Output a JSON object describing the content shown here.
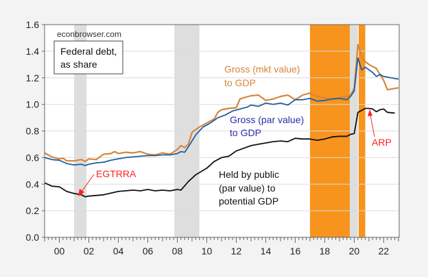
{
  "chart_data": {
    "type": "line",
    "title": "",
    "watermark": "econbrowser.com",
    "legend_box": [
      "Federal debt,",
      "as share"
    ],
    "xlabel": "",
    "ylabel": "",
    "xlim": [
      1999.0,
      2023.05
    ],
    "ylim": [
      0.0,
      1.6
    ],
    "grid": true,
    "y_ticks": [
      "0.0",
      "0.2",
      "0.4",
      "0.6",
      "0.8",
      "1.0",
      "1.2",
      "1.4",
      "1.6"
    ],
    "x_tick_labels": [
      {
        "year": 2000,
        "label": "00"
      },
      {
        "year": 2002,
        "label": "02"
      },
      {
        "year": 2004,
        "label": "04"
      },
      {
        "year": 2006,
        "label": "06"
      },
      {
        "year": 2008,
        "label": "08"
      },
      {
        "year": 2010,
        "label": "10"
      },
      {
        "year": 2012,
        "label": "12"
      },
      {
        "year": 2014,
        "label": "14"
      },
      {
        "year": 2016,
        "label": "16"
      },
      {
        "year": 2018,
        "label": "18"
      },
      {
        "year": 2020,
        "label": "20"
      },
      {
        "year": 2022,
        "label": "22"
      }
    ],
    "shading": [
      {
        "kind": "recession",
        "from": 2001.0,
        "to": 2001.85,
        "color": "#dedede"
      },
      {
        "kind": "recession",
        "from": 2007.8,
        "to": 2009.5,
        "color": "#dedede"
      },
      {
        "kind": "highlight",
        "from": 2017.0,
        "to": 2019.7,
        "color": "#f7941d"
      },
      {
        "kind": "recession",
        "from": 2019.7,
        "to": 2020.25,
        "color": "#dedede"
      },
      {
        "kind": "highlight",
        "from": 2020.3,
        "to": 2020.75,
        "color": "#f7941d"
      }
    ],
    "series": [
      {
        "name": "Gross (mkt value) to GDP",
        "label_lines": [
          "Gross (mkt value)",
          "to GDP"
        ],
        "color": "#d8853a",
        "points": [
          [
            1999.0,
            0.635
          ],
          [
            1999.5,
            0.605
          ],
          [
            2000.0,
            0.59
          ],
          [
            2000.25,
            0.595
          ],
          [
            2000.5,
            0.575
          ],
          [
            2001.0,
            0.575
          ],
          [
            2001.5,
            0.585
          ],
          [
            2001.75,
            0.57
          ],
          [
            2002.0,
            0.59
          ],
          [
            2002.5,
            0.585
          ],
          [
            2003.0,
            0.625
          ],
          [
            2003.5,
            0.63
          ],
          [
            2003.75,
            0.645
          ],
          [
            2004.0,
            0.63
          ],
          [
            2004.5,
            0.64
          ],
          [
            2005.0,
            0.635
          ],
          [
            2005.5,
            0.645
          ],
          [
            2006.0,
            0.625
          ],
          [
            2006.5,
            0.62
          ],
          [
            2007.0,
            0.635
          ],
          [
            2007.5,
            0.625
          ],
          [
            2008.0,
            0.66
          ],
          [
            2008.25,
            0.69
          ],
          [
            2008.5,
            0.675
          ],
          [
            2008.75,
            0.7
          ],
          [
            2009.0,
            0.79
          ],
          [
            2009.5,
            0.83
          ],
          [
            2010.0,
            0.86
          ],
          [
            2010.5,
            0.89
          ],
          [
            2010.75,
            0.94
          ],
          [
            2011.0,
            0.96
          ],
          [
            2011.5,
            0.97
          ],
          [
            2012.0,
            0.975
          ],
          [
            2012.25,
            1.04
          ],
          [
            2012.5,
            1.05
          ],
          [
            2013.0,
            1.065
          ],
          [
            2013.5,
            1.07
          ],
          [
            2014.0,
            1.03
          ],
          [
            2014.5,
            1.04
          ],
          [
            2015.0,
            1.06
          ],
          [
            2015.5,
            1.07
          ],
          [
            2016.0,
            1.035
          ],
          [
            2016.5,
            1.07
          ],
          [
            2017.0,
            1.085
          ],
          [
            2017.5,
            1.06
          ],
          [
            2018.0,
            1.05
          ],
          [
            2018.5,
            1.04
          ],
          [
            2019.0,
            1.05
          ],
          [
            2019.5,
            1.06
          ],
          [
            2019.75,
            1.07
          ],
          [
            2020.0,
            1.12
          ],
          [
            2020.25,
            1.45
          ],
          [
            2020.5,
            1.36
          ],
          [
            2020.75,
            1.32
          ],
          [
            2021.0,
            1.3
          ],
          [
            2021.5,
            1.27
          ],
          [
            2022.0,
            1.18
          ],
          [
            2022.25,
            1.11
          ],
          [
            2022.75,
            1.12
          ],
          [
            2023.0,
            1.125
          ]
        ]
      },
      {
        "name": "Gross (par value) to GDP",
        "label_lines": [
          "Gross (par value)",
          "to GDP"
        ],
        "color": "#1f5fa0",
        "label_color": "#2a2aa8",
        "points": [
          [
            1999.0,
            0.6
          ],
          [
            1999.5,
            0.585
          ],
          [
            2000.0,
            0.58
          ],
          [
            2000.5,
            0.555
          ],
          [
            2001.0,
            0.545
          ],
          [
            2001.5,
            0.55
          ],
          [
            2001.75,
            0.54
          ],
          [
            2002.0,
            0.55
          ],
          [
            2002.5,
            0.56
          ],
          [
            2003.0,
            0.565
          ],
          [
            2003.5,
            0.58
          ],
          [
            2004.0,
            0.59
          ],
          [
            2004.5,
            0.6
          ],
          [
            2005.0,
            0.605
          ],
          [
            2005.5,
            0.61
          ],
          [
            2006.0,
            0.615
          ],
          [
            2006.5,
            0.615
          ],
          [
            2007.0,
            0.62
          ],
          [
            2007.5,
            0.62
          ],
          [
            2008.0,
            0.63
          ],
          [
            2008.25,
            0.645
          ],
          [
            2008.5,
            0.64
          ],
          [
            2008.75,
            0.68
          ],
          [
            2009.25,
            0.77
          ],
          [
            2009.75,
            0.83
          ],
          [
            2010.25,
            0.86
          ],
          [
            2010.75,
            0.9
          ],
          [
            2011.25,
            0.92
          ],
          [
            2011.75,
            0.95
          ],
          [
            2012.25,
            0.965
          ],
          [
            2012.75,
            0.98
          ],
          [
            2013.0,
            0.995
          ],
          [
            2013.5,
            0.985
          ],
          [
            2014.0,
            1.01
          ],
          [
            2014.5,
            1.0
          ],
          [
            2015.0,
            1.01
          ],
          [
            2015.5,
            0.995
          ],
          [
            2016.0,
            1.035
          ],
          [
            2016.5,
            1.035
          ],
          [
            2017.0,
            1.045
          ],
          [
            2017.5,
            1.025
          ],
          [
            2018.0,
            1.03
          ],
          [
            2018.5,
            1.04
          ],
          [
            2019.0,
            1.045
          ],
          [
            2019.5,
            1.035
          ],
          [
            2019.75,
            1.06
          ],
          [
            2020.0,
            1.1
          ],
          [
            2020.25,
            1.35
          ],
          [
            2020.5,
            1.26
          ],
          [
            2020.75,
            1.28
          ],
          [
            2021.25,
            1.24
          ],
          [
            2021.5,
            1.21
          ],
          [
            2021.75,
            1.225
          ],
          [
            2022.0,
            1.21
          ],
          [
            2022.5,
            1.2
          ],
          [
            2023.0,
            1.19
          ]
        ]
      },
      {
        "name": "Held by public (par value) to potential GDP",
        "label_lines": [
          "Held by public",
          "(par value) to",
          "potential GDP"
        ],
        "color": "#111111",
        "points": [
          [
            1999.0,
            0.41
          ],
          [
            1999.5,
            0.385
          ],
          [
            2000.0,
            0.38
          ],
          [
            2000.5,
            0.345
          ],
          [
            2001.0,
            0.33
          ],
          [
            2001.5,
            0.32
          ],
          [
            2001.75,
            0.305
          ],
          [
            2002.0,
            0.31
          ],
          [
            2003.0,
            0.32
          ],
          [
            2004.0,
            0.345
          ],
          [
            2005.0,
            0.355
          ],
          [
            2005.5,
            0.35
          ],
          [
            2006.0,
            0.36
          ],
          [
            2006.5,
            0.35
          ],
          [
            2007.0,
            0.355
          ],
          [
            2007.5,
            0.35
          ],
          [
            2008.0,
            0.36
          ],
          [
            2008.25,
            0.355
          ],
          [
            2008.75,
            0.42
          ],
          [
            2009.25,
            0.47
          ],
          [
            2010.0,
            0.52
          ],
          [
            2010.5,
            0.57
          ],
          [
            2011.0,
            0.6
          ],
          [
            2011.5,
            0.61
          ],
          [
            2012.0,
            0.65
          ],
          [
            2012.5,
            0.67
          ],
          [
            2013.0,
            0.69
          ],
          [
            2013.5,
            0.7
          ],
          [
            2014.0,
            0.71
          ],
          [
            2014.5,
            0.72
          ],
          [
            2015.0,
            0.725
          ],
          [
            2015.5,
            0.72
          ],
          [
            2016.0,
            0.745
          ],
          [
            2016.5,
            0.74
          ],
          [
            2017.0,
            0.74
          ],
          [
            2017.5,
            0.73
          ],
          [
            2018.0,
            0.74
          ],
          [
            2018.5,
            0.755
          ],
          [
            2019.0,
            0.76
          ],
          [
            2019.5,
            0.76
          ],
          [
            2019.75,
            0.775
          ],
          [
            2020.0,
            0.78
          ],
          [
            2020.25,
            0.94
          ],
          [
            2020.5,
            0.955
          ],
          [
            2020.75,
            0.97
          ],
          [
            2021.0,
            0.97
          ],
          [
            2021.25,
            0.965
          ],
          [
            2021.5,
            0.945
          ],
          [
            2021.75,
            0.96
          ],
          [
            2022.0,
            0.965
          ],
          [
            2022.25,
            0.94
          ],
          [
            2022.75,
            0.935
          ]
        ]
      }
    ],
    "annotations": [
      {
        "text": "EGTRRA",
        "color": "#ff2020",
        "arrow_to": [
          2001.75,
          0.31
        ]
      },
      {
        "text": "ARP",
        "color": "#ff2020",
        "arrow_to": [
          2021.0,
          0.97
        ]
      }
    ]
  }
}
